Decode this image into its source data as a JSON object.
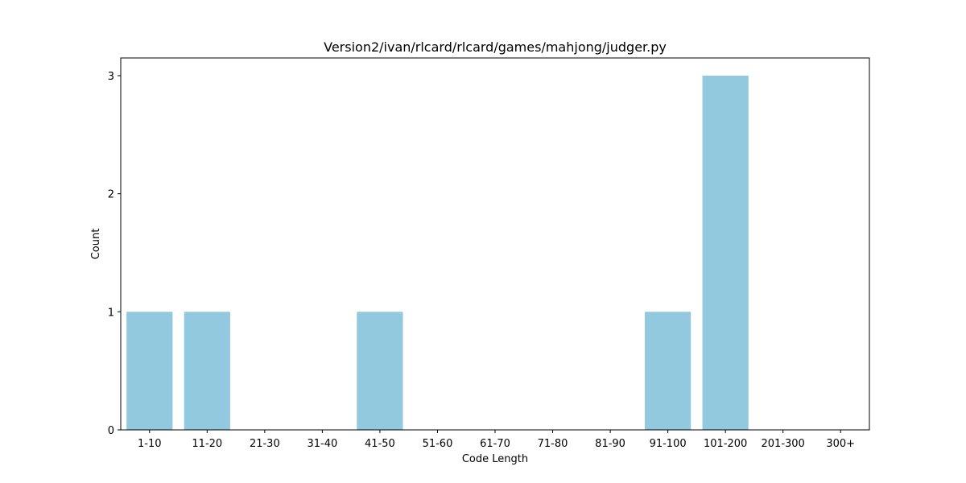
{
  "chart_data": {
    "type": "bar",
    "title": "Version2/ivan/rlcard/rlcard/games/mahjong/judger.py",
    "xlabel": "Code Length",
    "ylabel": "Count",
    "categories": [
      "1-10",
      "11-20",
      "21-30",
      "31-40",
      "41-50",
      "51-60",
      "61-70",
      "71-80",
      "81-90",
      "91-100",
      "101-200",
      "201-300",
      "300+"
    ],
    "values": [
      1,
      1,
      0,
      0,
      1,
      0,
      0,
      0,
      0,
      1,
      3,
      0,
      0
    ],
    "ylim": [
      0,
      3.15
    ],
    "yticks": [
      0,
      1,
      2,
      3
    ],
    "bar_color": "#92c9df",
    "grid": false,
    "legend": "none"
  }
}
